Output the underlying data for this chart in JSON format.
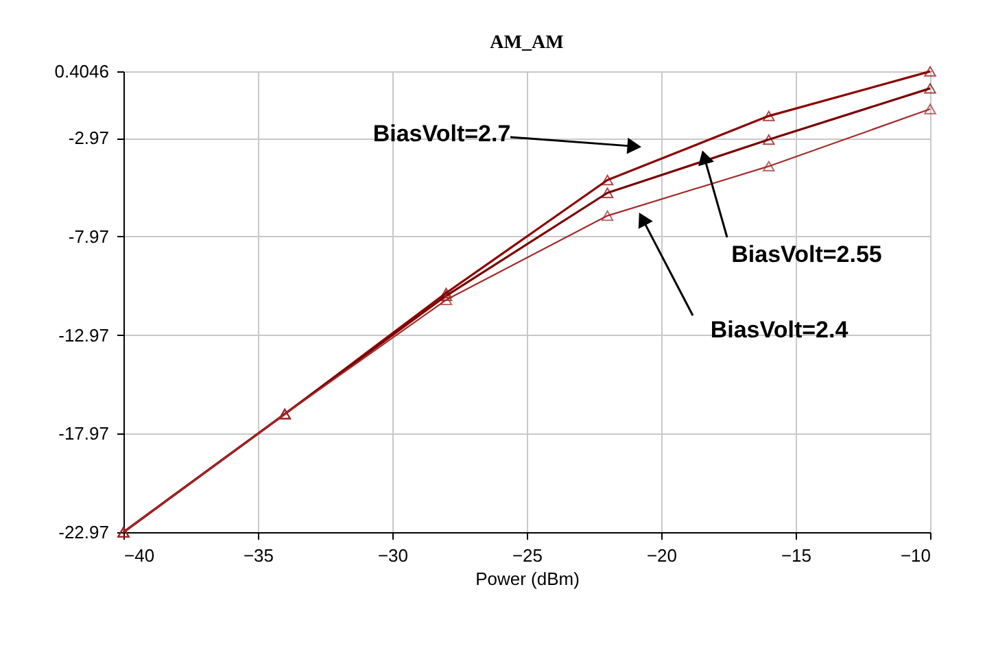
{
  "chart_data": {
    "type": "line",
    "title": "AM_AM",
    "xlabel": "Power (dBm)",
    "x": [
      -40,
      -34,
      -28,
      -22,
      -16,
      -10
    ],
    "series": [
      {
        "color": "#8b0000",
        "values": [
          -22.97,
          -16.98,
          -10.84,
          -5.11,
          -1.86,
          0.4
        ]
      },
      {
        "color": "#7a0000",
        "values": [
          -22.97,
          -16.98,
          -10.98,
          -5.76,
          -3.06,
          -0.46
        ]
      },
      {
        "color": "#a52a2a",
        "values": [
          -22.97,
          -16.98,
          -11.19,
          -6.92,
          -4.41,
          -1.51
        ]
      }
    ],
    "xlim": [
      -40,
      -10
    ],
    "xticks": [
      -40,
      -35,
      -30,
      -25,
      -20,
      -15,
      -10
    ],
    "ylim": [
      -22.97,
      0.4046
    ],
    "yticks": [
      -22.97,
      -17.97,
      -12.97,
      -7.97,
      -2.97,
      0.4046
    ],
    "grid": true,
    "marker": "triangle",
    "line_style": "solid",
    "annotations": [
      {
        "text": "BiasVolt=2.7",
        "x": -21,
        "y": -3.4
      },
      {
        "text": "BiasVolt=2.55",
        "x": -18.4,
        "y": -3.95
      },
      {
        "text": "BiasVolt=2.4",
        "x": -20.7,
        "y": -7.08
      }
    ]
  }
}
